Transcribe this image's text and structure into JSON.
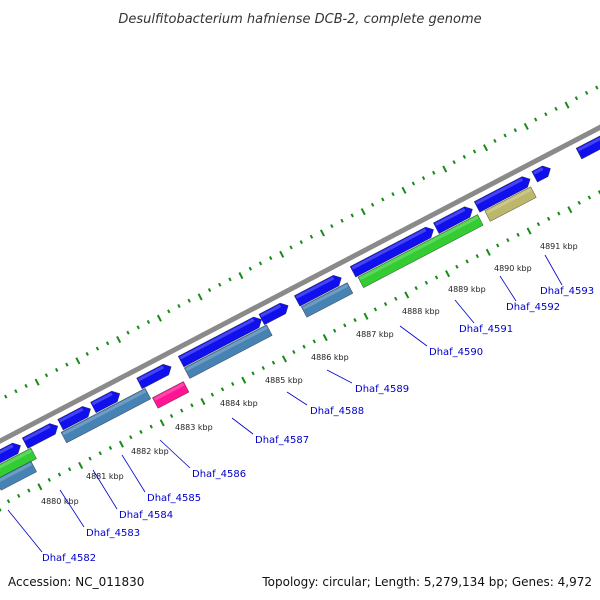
{
  "title": "Desulfitobacterium hafniense DCB-2, complete genome",
  "accession": "Accession: NC_011830",
  "topology": "Topology: circular; Length: 5,279,134 bp; Genes: 4,972",
  "colors": {
    "backbone": "#8a8a8a",
    "tick": "#1a8a1a",
    "gene_blue": "#1010ee",
    "gene_steel": "#4682b4",
    "gene_green": "#33cc33",
    "gene_pink": "#ff1493",
    "gene_khaki": "#bdb76b",
    "label": "#0000cc"
  },
  "kbp_labels": [
    "4880 kbp",
    "4881 kbp",
    "4882 kbp",
    "4883 kbp",
    "4884 kbp",
    "4885 kbp",
    "4886 kbp",
    "4887 kbp",
    "4888 kbp",
    "4889 kbp",
    "4890 kbp",
    "4891 kbp"
  ],
  "gene_labels": [
    "Dhaf_4582",
    "Dhaf_4583",
    "Dhaf_4584",
    "Dhaf_4585",
    "Dhaf_4586",
    "Dhaf_4587",
    "Dhaf_4588",
    "Dhaf_4589",
    "Dhaf_4590",
    "Dhaf_4591",
    "Dhaf_4592",
    "Dhaf_4593"
  ]
}
